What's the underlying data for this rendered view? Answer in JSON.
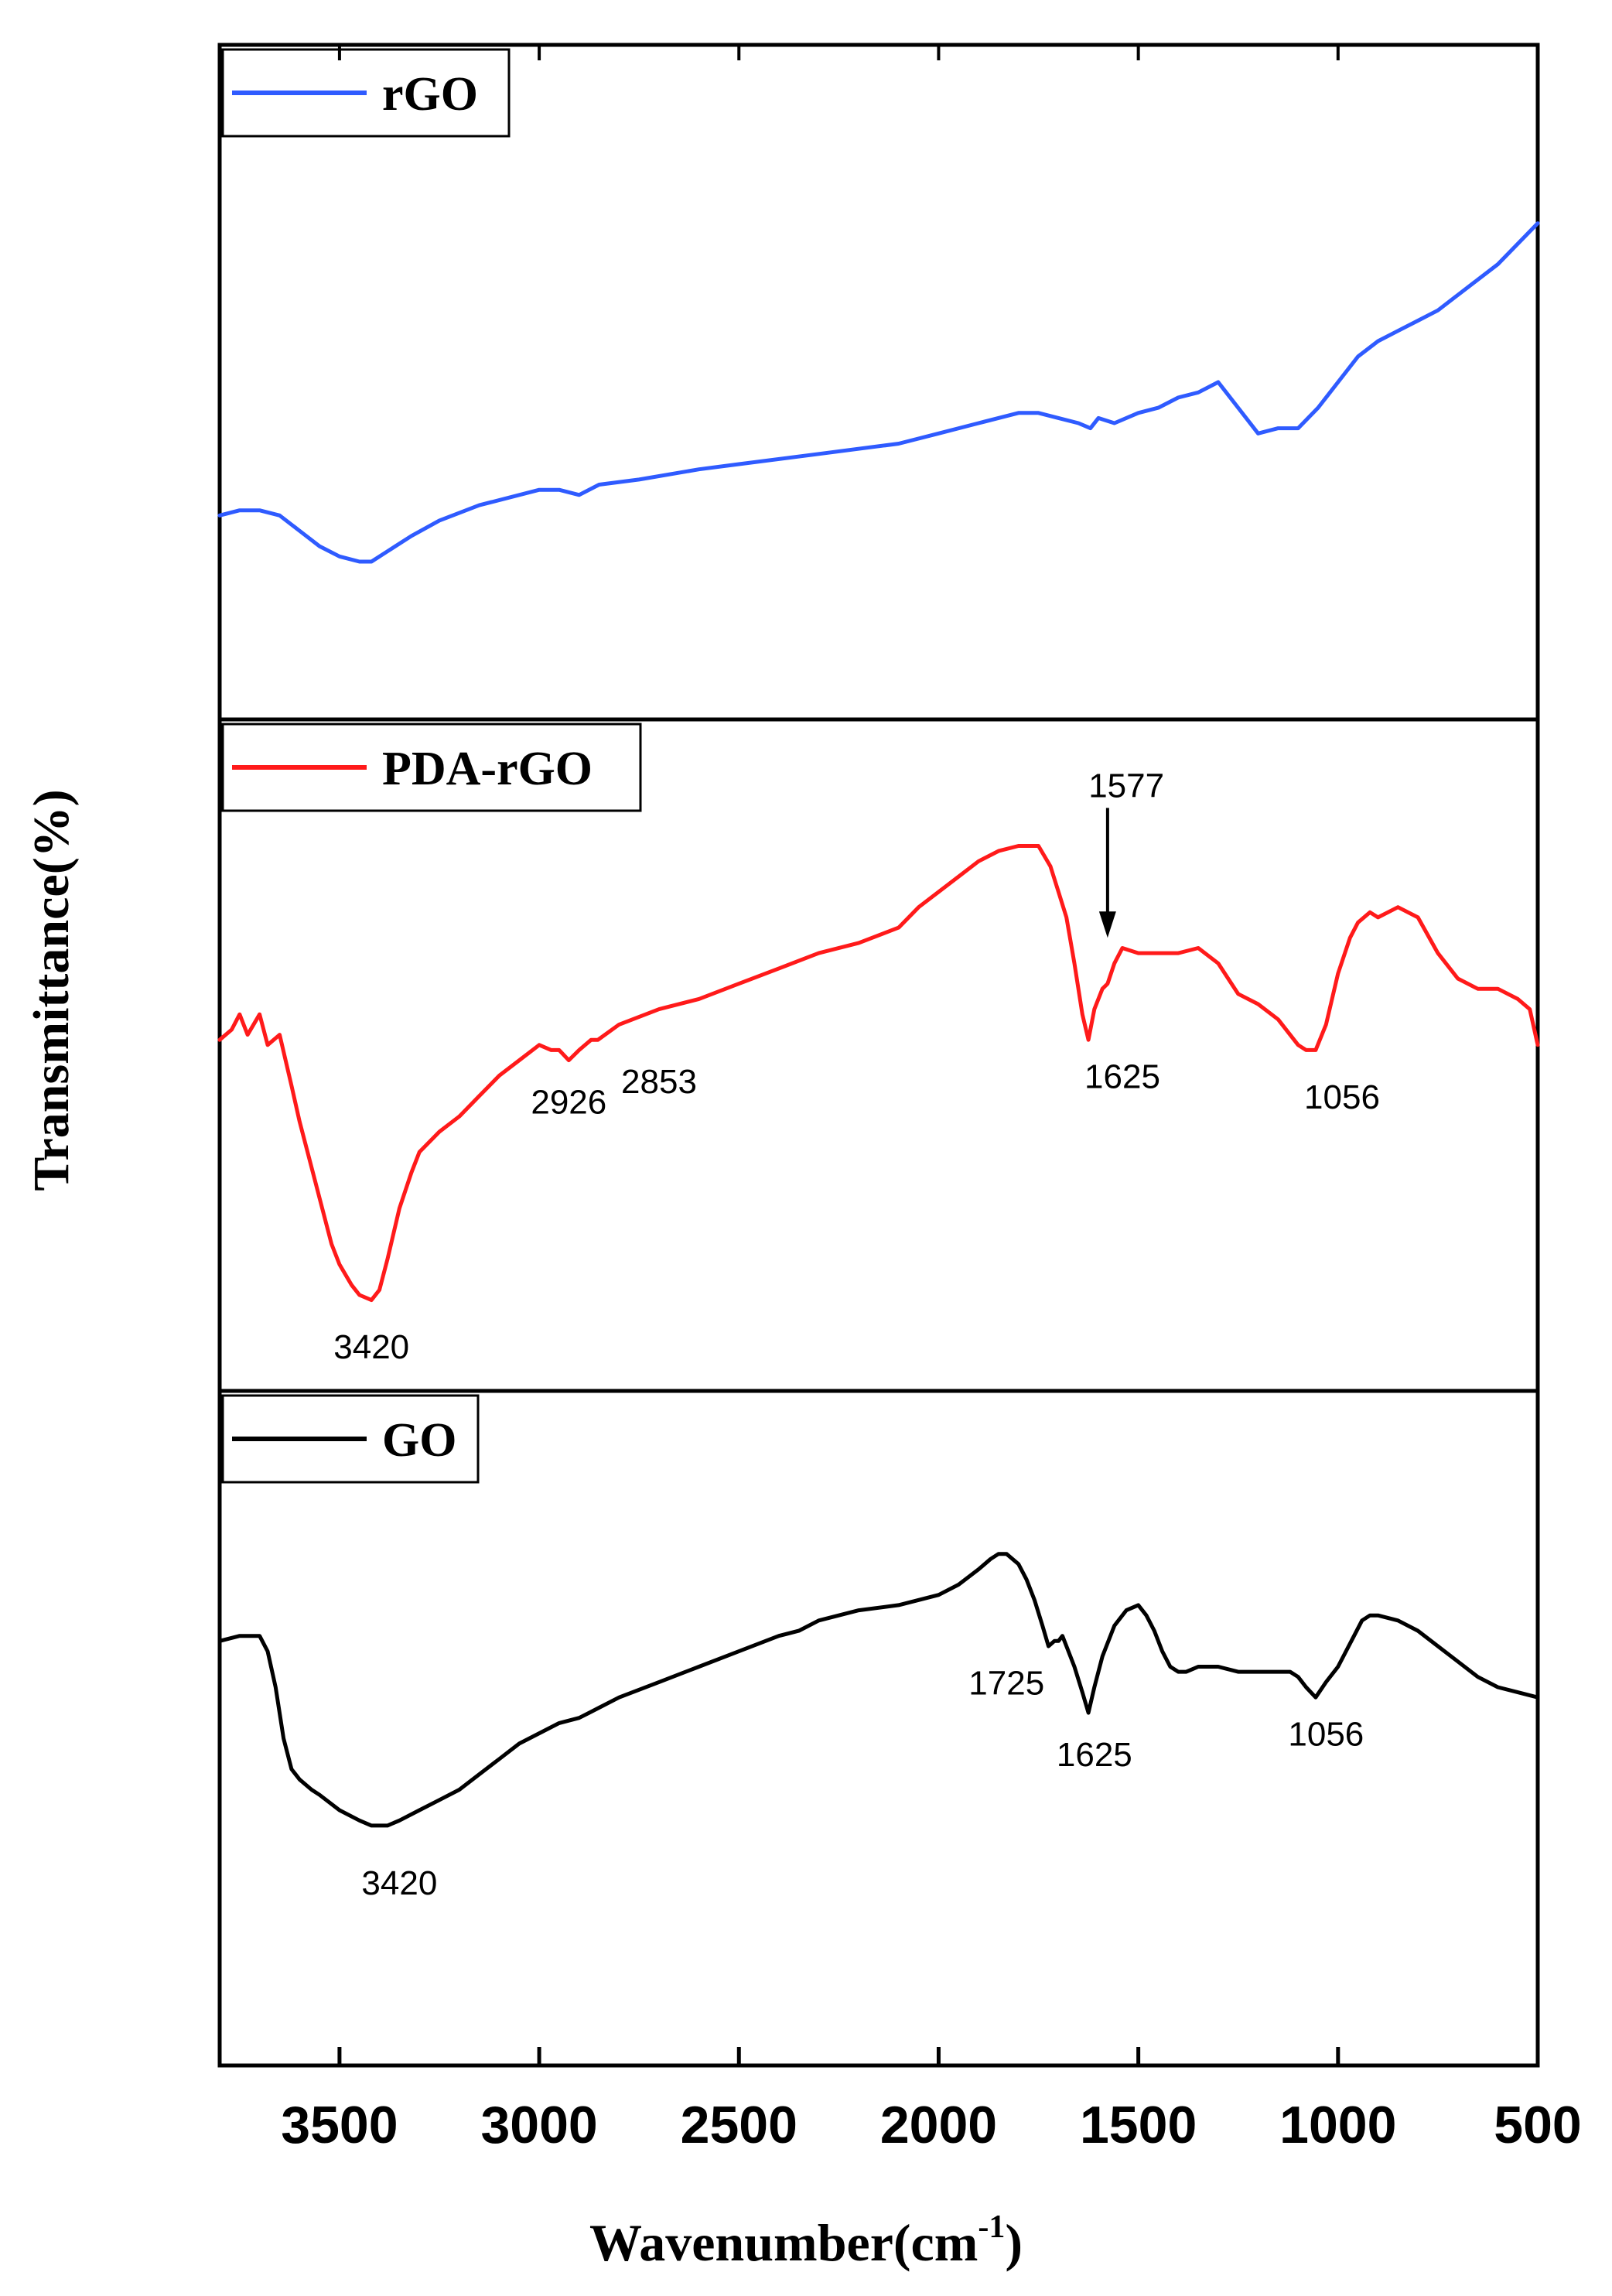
{
  "chart_data": {
    "type": "line",
    "title": "",
    "xlabel": "Wavenumber(cm",
    "xlabel_sup": "-1",
    "xlabel_close": ")",
    "ylabel": "Transmittance(%)",
    "xlim": [
      3800,
      500
    ],
    "x_ticks": [
      3500,
      3000,
      2500,
      2000,
      1500,
      1000,
      500
    ],
    "x_tick_labels": [
      "3500",
      "3000",
      "2500",
      "2000",
      "1500",
      "1000",
      "500"
    ],
    "panels": [
      {
        "name": "rGO",
        "legend": "rGO",
        "color": "#2f5bff",
        "ylim": [
          0,
          100
        ],
        "x": [
          3800,
          3750,
          3700,
          3650,
          3600,
          3550,
          3500,
          3450,
          3420,
          3380,
          3320,
          3250,
          3150,
          3000,
          2950,
          2900,
          2850,
          2750,
          2600,
          2500,
          2300,
          2100,
          2000,
          1900,
          1800,
          1750,
          1700,
          1650,
          1620,
          1600,
          1560,
          1500,
          1450,
          1400,
          1350,
          1300,
          1250,
          1200,
          1150,
          1100,
          1050,
          1000,
          950,
          900,
          850,
          800,
          750,
          700,
          650,
          600,
          550,
          500
        ],
        "y": [
          24,
          25,
          25,
          24,
          21,
          18,
          16,
          15,
          15,
          17,
          20,
          23,
          26,
          29,
          29,
          28,
          30,
          31,
          33,
          34,
          36,
          38,
          40,
          42,
          44,
          44,
          43,
          42,
          41,
          43,
          42,
          44,
          45,
          47,
          48,
          50,
          45,
          40,
          41,
          41,
          45,
          50,
          55,
          58,
          60,
          62,
          64,
          67,
          70,
          73,
          77,
          81
        ]
      },
      {
        "name": "PDA-rGO",
        "legend": "PDA-rGO",
        "color": "#ff1a1a",
        "ylim": [
          0,
          100
        ],
        "x": [
          3800,
          3770,
          3750,
          3730,
          3700,
          3680,
          3650,
          3620,
          3600,
          3570,
          3550,
          3520,
          3500,
          3470,
          3450,
          3420,
          3400,
          3380,
          3350,
          3320,
          3300,
          3250,
          3200,
          3150,
          3100,
          3050,
          3000,
          2970,
          2950,
          2926,
          2900,
          2870,
          2853,
          2800,
          2700,
          2600,
          2500,
          2400,
          2300,
          2200,
          2100,
          2050,
          2000,
          1950,
          1900,
          1850,
          1800,
          1750,
          1720,
          1700,
          1680,
          1660,
          1640,
          1625,
          1610,
          1590,
          1577,
          1560,
          1540,
          1500,
          1450,
          1400,
          1350,
          1300,
          1250,
          1200,
          1150,
          1100,
          1080,
          1056,
          1030,
          1000,
          970,
          950,
          920,
          900,
          850,
          800,
          750,
          700,
          650,
          600,
          550,
          520,
          500
        ],
        "y": [
          53,
          55,
          58,
          54,
          58,
          52,
          54,
          44,
          37,
          28,
          22,
          13,
          9,
          5,
          3,
          2,
          4,
          10,
          20,
          27,
          31,
          35,
          38,
          42,
          46,
          49,
          52,
          51,
          51,
          49,
          51,
          53,
          53,
          56,
          59,
          61,
          64,
          67,
          70,
          72,
          75,
          79,
          82,
          85,
          88,
          90,
          91,
          91,
          87,
          82,
          77,
          68,
          58,
          53,
          59,
          63,
          64,
          68,
          71,
          70,
          70,
          70,
          71,
          68,
          62,
          60,
          57,
          52,
          51,
          51,
          56,
          66,
          73,
          76,
          78,
          77,
          79,
          77,
          70,
          65,
          63,
          63,
          61,
          59,
          52
        ]
      },
      {
        "name": "GO",
        "legend": "GO",
        "color": "#000000",
        "ylim": [
          0,
          100
        ],
        "x": [
          3800,
          3750,
          3700,
          3680,
          3660,
          3640,
          3620,
          3600,
          3570,
          3550,
          3500,
          3450,
          3420,
          3380,
          3350,
          3300,
          3250,
          3200,
          3150,
          3100,
          3050,
          3000,
          2950,
          2900,
          2850,
          2800,
          2700,
          2600,
          2500,
          2400,
          2350,
          2300,
          2200,
          2100,
          2000,
          1950,
          1900,
          1870,
          1850,
          1830,
          1800,
          1780,
          1760,
          1740,
          1725,
          1710,
          1700,
          1690,
          1680,
          1660,
          1640,
          1625,
          1610,
          1590,
          1560,
          1530,
          1500,
          1480,
          1460,
          1440,
          1420,
          1400,
          1380,
          1350,
          1300,
          1250,
          1200,
          1150,
          1120,
          1100,
          1080,
          1056,
          1030,
          1000,
          980,
          960,
          940,
          920,
          900,
          850,
          800,
          750,
          700,
          650,
          600,
          550,
          500
        ],
        "y": [
          67,
          68,
          68,
          65,
          58,
          48,
          42,
          40,
          38,
          37,
          34,
          32,
          31,
          31,
          32,
          34,
          36,
          38,
          41,
          44,
          47,
          49,
          51,
          52,
          54,
          56,
          59,
          62,
          65,
          68,
          69,
          71,
          73,
          74,
          76,
          78,
          81,
          83,
          84,
          84,
          82,
          79,
          75,
          70,
          66,
          67,
          67,
          68,
          66,
          62,
          57,
          53,
          58,
          64,
          70,
          73,
          74,
          72,
          69,
          65,
          62,
          61,
          61,
          62,
          62,
          61,
          61,
          61,
          61,
          60,
          58,
          56,
          59,
          62,
          65,
          68,
          71,
          72,
          72,
          71,
          69,
          66,
          63,
          60,
          58,
          57,
          56
        ]
      }
    ],
    "annotations": [
      {
        "panel": "PDA-rGO",
        "text": "3420",
        "x": 3420,
        "y": -7
      },
      {
        "panel": "PDA-rGO",
        "text": "2926",
        "x": 2926,
        "y": 41
      },
      {
        "panel": "PDA-rGO",
        "text": "2853",
        "x": 2700,
        "y": 45
      },
      {
        "panel": "PDA-rGO",
        "text": "1577",
        "x": 1530,
        "y": 103,
        "arrow_to": [
          1577,
          73
        ]
      },
      {
        "panel": "PDA-rGO",
        "text": "1625",
        "x": 1540,
        "y": 46
      },
      {
        "panel": "PDA-rGO",
        "text": "1056",
        "x": 990,
        "y": 42
      },
      {
        "panel": "GO",
        "text": "3420",
        "x": 3350,
        "y": 20
      },
      {
        "panel": "GO",
        "text": "1725",
        "x": 1830,
        "y": 59
      },
      {
        "panel": "GO",
        "text": "1625",
        "x": 1610,
        "y": 45
      },
      {
        "panel": "GO",
        "text": "1056",
        "x": 1030,
        "y": 49
      }
    ]
  }
}
